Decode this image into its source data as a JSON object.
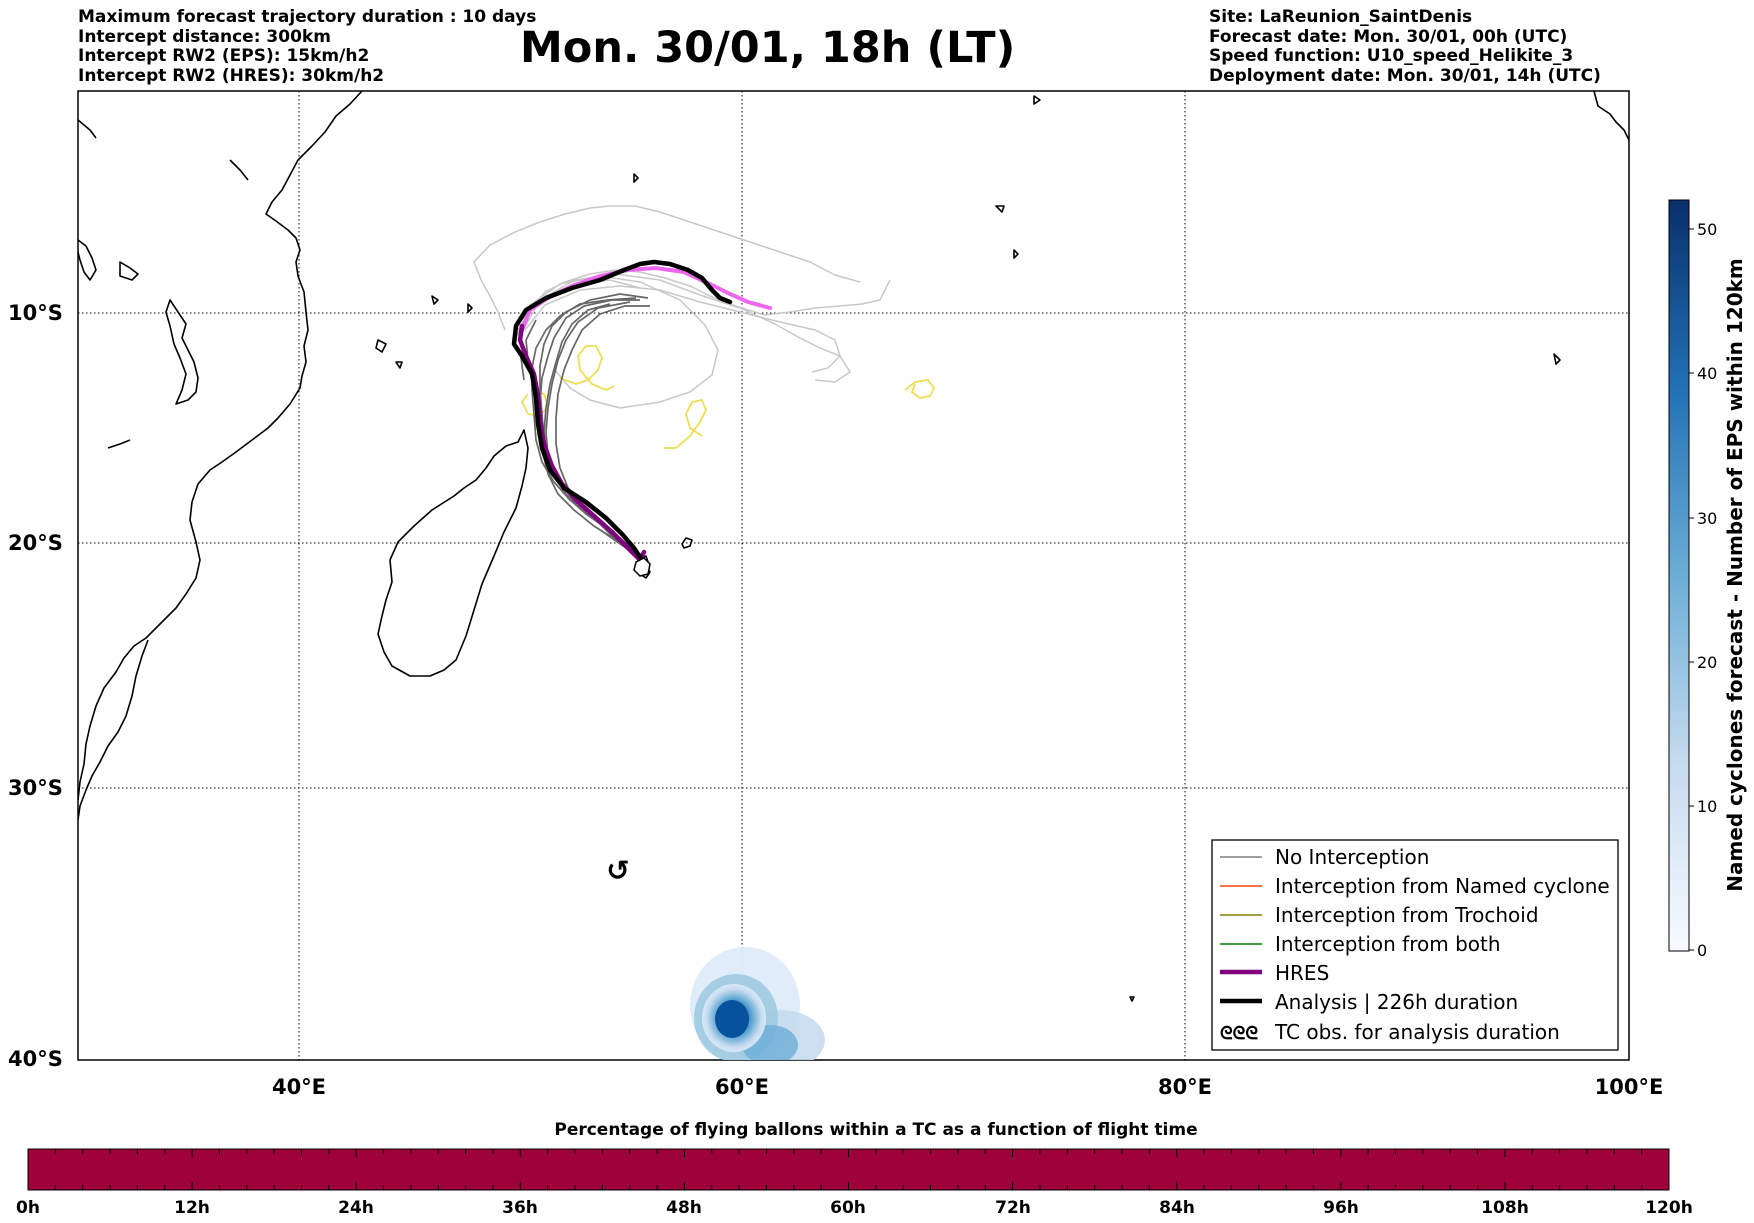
{
  "header": {
    "left": [
      "Maximum forecast trajectory duration : 10 days",
      "Intercept distance: 300km",
      "Intercept RW2 (EPS):  15km/h2",
      "Intercept RW2 (HRES): 30km/h2"
    ],
    "title": "Mon. 30/01, 18h (LT)",
    "right": [
      "Site: LaReunion_SaintDenis",
      "Forecast date: Mon. 30/01, 00h (UTC)",
      "Speed function: U10_speed_Helikite_3",
      "Deployment date: Mon. 30/01, 14h (UTC)"
    ]
  },
  "map": {
    "lat_labels": [
      "10°S",
      "20°S",
      "30°S",
      "40°S"
    ],
    "lon_labels": [
      "40°E",
      "60°E",
      "80°E",
      "100°E"
    ],
    "lon_range": [
      30,
      100
    ],
    "lat_range": [
      -41,
      -1
    ]
  },
  "colorbar": {
    "title": "Named cyclones forecast - Number of EPS within 120km",
    "ticks": [
      "0",
      "10",
      "20",
      "30",
      "40",
      "50"
    ],
    "range": [
      0,
      52
    ],
    "colormap": "Blues"
  },
  "legend": {
    "items": [
      {
        "label": "No Interception",
        "color": "#808080"
      },
      {
        "label": "Interception from Named cyclone",
        "color": "#ff4500"
      },
      {
        "label": "Interception from Trochoid",
        "color": "#808000"
      },
      {
        "label": "Interception from both",
        "color": "#008000"
      },
      {
        "label": "HRES",
        "color": "#800080"
      },
      {
        "label": "Analysis | 226h duration",
        "color": "#000000"
      },
      {
        "label": "TC obs. for analysis duration",
        "symbol": "ᘓᘓᘓ"
      }
    ]
  },
  "timebar": {
    "title": "Percentage of flying ballons within a TC as a function of flight time",
    "ticks": [
      "0h",
      "12h",
      "24h",
      "36h",
      "48h",
      "60h",
      "72h",
      "84h",
      "96h",
      "108h",
      "120h"
    ],
    "fill_color": "#9e003a",
    "value_percent": 0
  },
  "tc_symbol": "↺",
  "colors": {
    "analysis": "#000000",
    "hres": "#800080",
    "hres_extension": "#ee66ee",
    "eps": "#666666",
    "eps_light": "#c8c8c8",
    "trochoid": "#eedd55"
  }
}
